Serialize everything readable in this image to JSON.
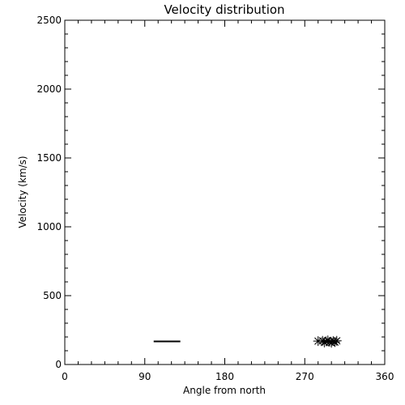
{
  "chart_data": {
    "type": "scatter",
    "title": "Velocity distribution",
    "xlabel": "Angle from north",
    "ylabel": "Velocity (km/s)",
    "xlim": [
      0,
      360
    ],
    "ylim": [
      0,
      2500
    ],
    "xticks": [
      0,
      90,
      180,
      270,
      360
    ],
    "yticks": [
      0,
      500,
      1000,
      1500,
      2000,
      2500
    ],
    "grid": false,
    "legend": "none",
    "segment": {
      "x": [
        100,
        130
      ],
      "y": 168
    },
    "points": [
      {
        "x": 285,
        "y": 170
      },
      {
        "x": 290,
        "y": 172
      },
      {
        "x": 292,
        "y": 160
      },
      {
        "x": 294,
        "y": 168
      },
      {
        "x": 296,
        "y": 175
      },
      {
        "x": 298,
        "y": 165
      },
      {
        "x": 300,
        "y": 158
      },
      {
        "x": 302,
        "y": 170
      },
      {
        "x": 304,
        "y": 163
      },
      {
        "x": 306,
        "y": 172
      }
    ],
    "colors": {
      "foreground": "#000000",
      "background": "#ffffff"
    }
  }
}
